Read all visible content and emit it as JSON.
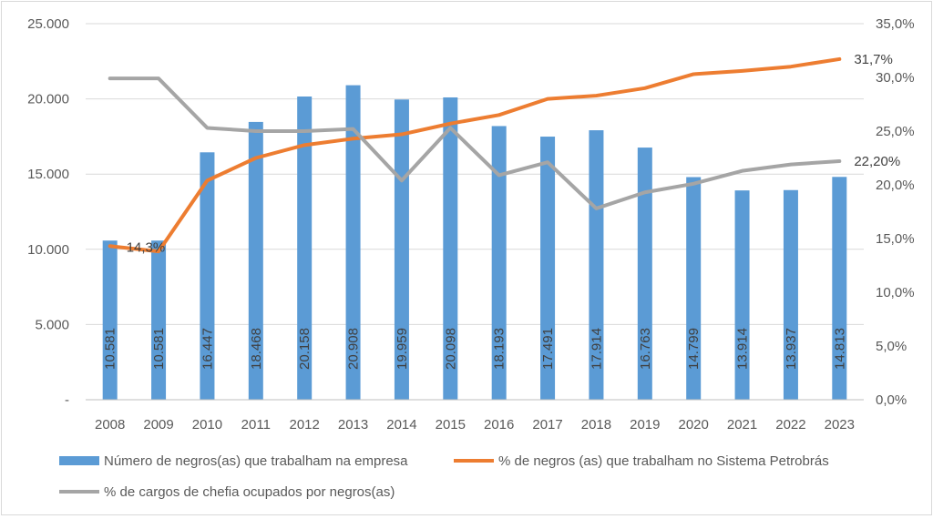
{
  "chart_data": {
    "type": "bar+line",
    "categories": [
      "2008",
      "2009",
      "2010",
      "2011",
      "2012",
      "2013",
      "2014",
      "2015",
      "2016",
      "2017",
      "2018",
      "2019",
      "2020",
      "2021",
      "2022",
      "2023"
    ],
    "bar_series": {
      "name": "Número de negros(as) que trabalham na empresa",
      "color": "#5B9BD5",
      "values": [
        10581,
        10581,
        16447,
        18468,
        20158,
        20908,
        19959,
        20098,
        18193,
        17491,
        17914,
        16763,
        14799,
        13914,
        13937,
        14813
      ],
      "labels": [
        "10.581",
        "10.581",
        "16.447",
        "18.468",
        "20.158",
        "20.908",
        "19.959",
        "20.098",
        "18.193",
        "17.491",
        "17.914",
        "16.763",
        "14.799",
        "13.914",
        "13.937",
        "14.813"
      ]
    },
    "line_series": [
      {
        "name": "% de negros (as) que trabalham no Sistema Petrobrás",
        "color": "#ED7D31",
        "values": [
          14.3,
          13.8,
          20.4,
          22.5,
          23.7,
          24.3,
          24.7,
          25.7,
          26.5,
          28.0,
          28.3,
          29.0,
          30.3,
          30.6,
          31.0,
          31.7
        ],
        "start_label": "14,3%",
        "end_label": "31,7%"
      },
      {
        "name": "% de cargos de chefia ocupados por negros(as)",
        "color": "#A5A5A5",
        "values": [
          29.9,
          29.9,
          25.3,
          25.0,
          25.0,
          25.2,
          20.4,
          25.3,
          20.9,
          22.1,
          17.8,
          19.3,
          20.1,
          21.3,
          21.9,
          22.2
        ],
        "end_label": "22,20%"
      }
    ],
    "y_left": {
      "min": 0,
      "max": 25000,
      "step": 5000,
      "tick_labels": [
        "-",
        "5.000",
        "10.000",
        "15.000",
        "20.000",
        "25.000"
      ]
    },
    "y_right": {
      "min": 0,
      "max": 35,
      "step": 5,
      "tick_labels": [
        "0,0%",
        "5,0%",
        "10,0%",
        "15,0%",
        "20,0%",
        "25,0%",
        "30,0%",
        "35,0%"
      ]
    },
    "grid": true,
    "legend": "bottom"
  }
}
